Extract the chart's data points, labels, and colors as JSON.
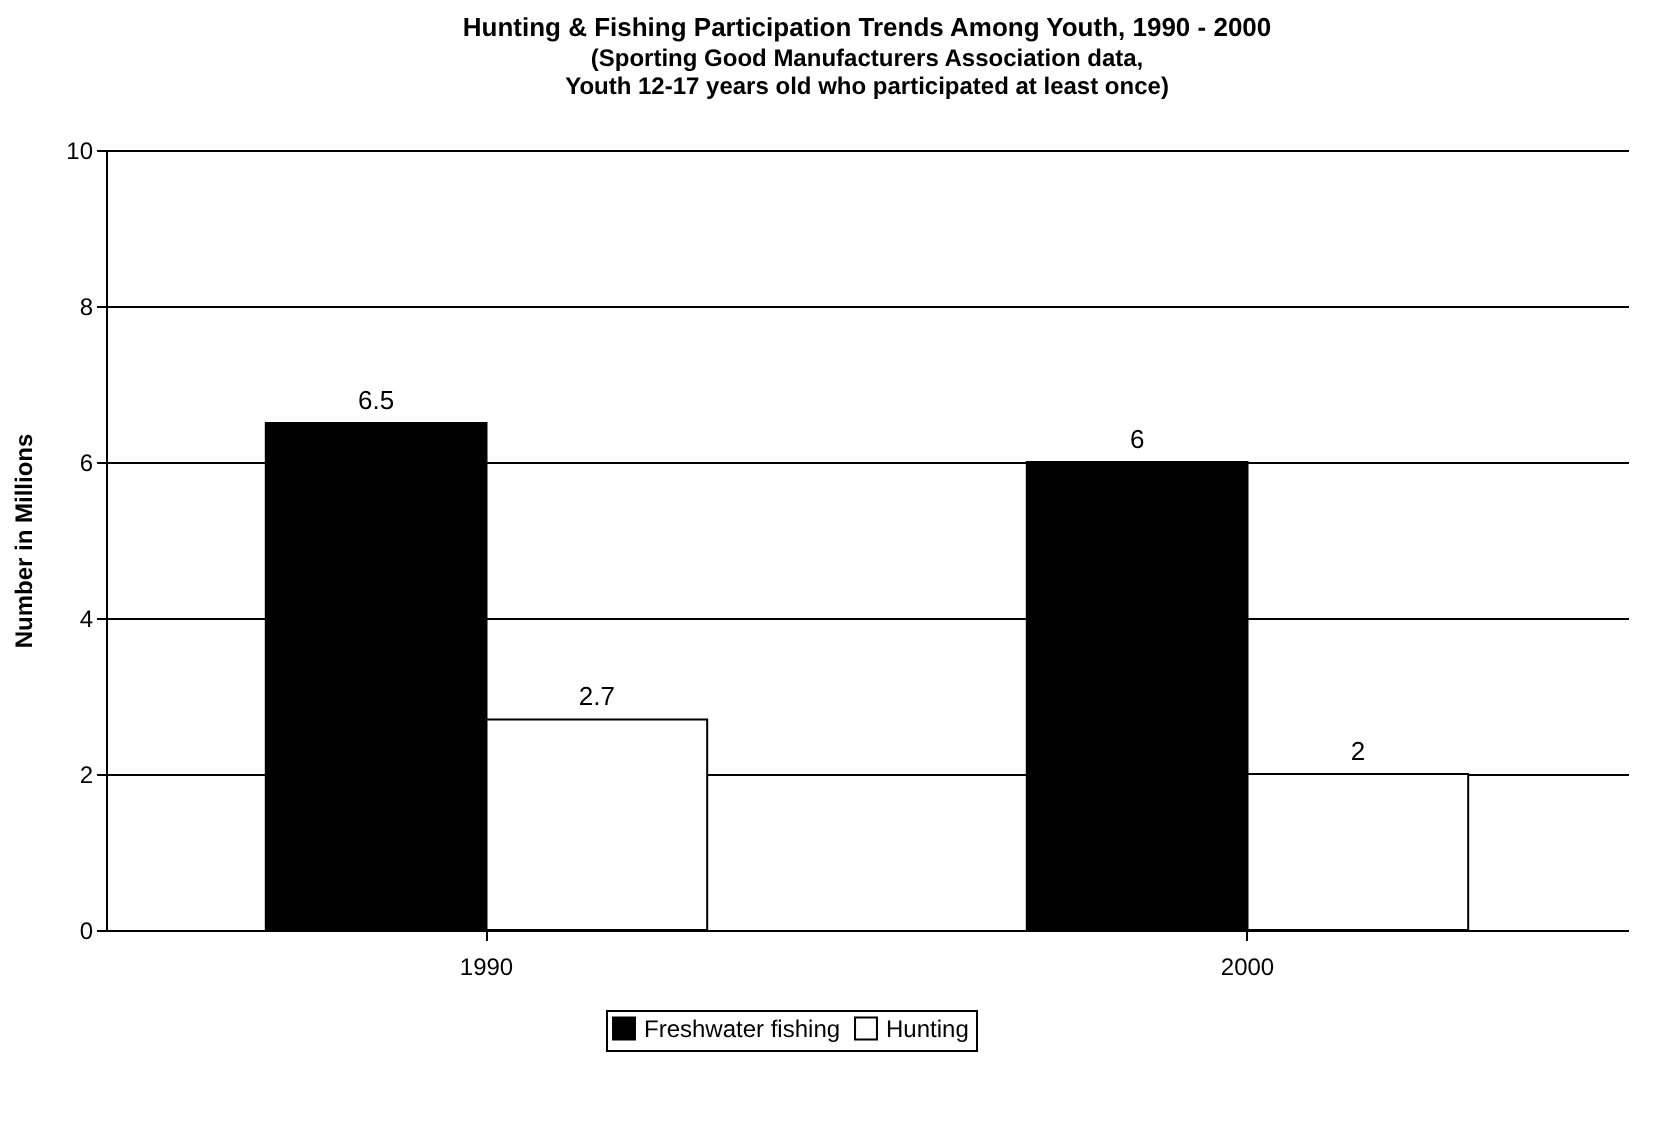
{
  "chart_data": {
    "type": "bar",
    "title": "Hunting & Fishing Participation Trends Among Youth, 1990 - 2000",
    "subtitle": "(Sporting Good Manufacturers Association data,\nYouth 12-17 years old who participated at least once)",
    "ylabel": "Number in Millions",
    "categories": [
      "1990",
      "2000"
    ],
    "series": [
      {
        "name": "Freshwater fishing",
        "color": "#000000",
        "values": [
          6.5,
          6
        ]
      },
      {
        "name": "Hunting",
        "color": "#ffffff",
        "values": [
          2.7,
          2
        ]
      }
    ],
    "ylim": [
      0,
      10
    ],
    "yticks": [
      0,
      2,
      4,
      6,
      8,
      10
    ],
    "grid": "y",
    "legend": "bottom",
    "data_labels": true
  }
}
